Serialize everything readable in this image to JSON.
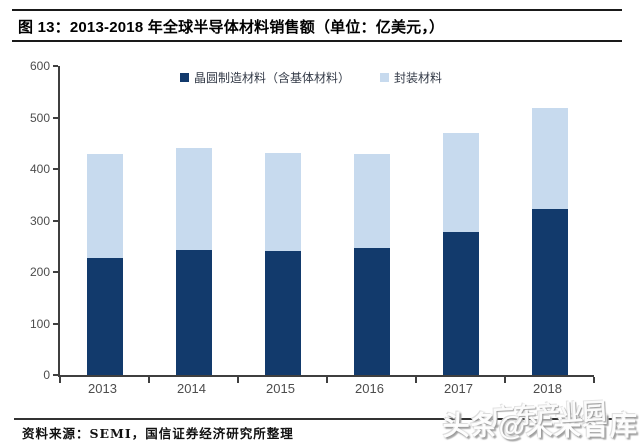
{
  "header": {
    "title": "图 13：2013-2018 年全球半导体材料销售额（单位：亿美元，）"
  },
  "footer": {
    "source": "资料来源：SEMI，国信证券经济研究所整理"
  },
  "watermark": {
    "back": "头条@未来智库",
    "front": "广东产业园"
  },
  "chart_data": {
    "type": "bar",
    "stacked": true,
    "title": "2013-2018 年全球半导体材料销售额",
    "unit": "亿美元",
    "categories": [
      "2013",
      "2014",
      "2015",
      "2016",
      "2017",
      "2018"
    ],
    "series": [
      {
        "name": "晶圆制造材料（含基体材料）",
        "color": "#123a6c",
        "values": [
          227,
          242,
          240,
          247,
          278,
          322
        ]
      },
      {
        "name": "封装材料",
        "color": "#c7daee",
        "values": [
          203,
          198,
          192,
          182,
          191,
          197
        ]
      }
    ],
    "totals": [
      430,
      440,
      432,
      429,
      469,
      519
    ],
    "ylim": [
      0,
      600
    ],
    "ytick_step": 100,
    "grid": false,
    "legend_position": "top",
    "axis_color": "#3f3f3f",
    "tick_label_color": "#4d4d4d"
  }
}
